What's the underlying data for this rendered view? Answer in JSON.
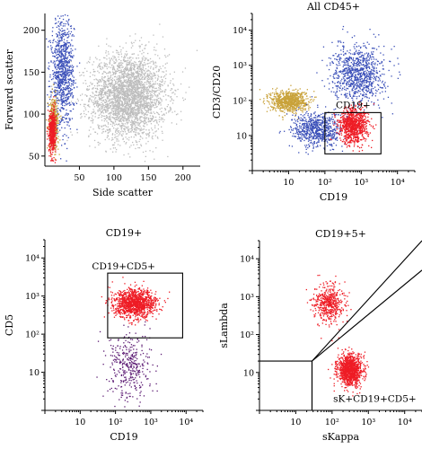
{
  "colors": {
    "grey": "#bdbdbd",
    "blue": "#3a4fb8",
    "red": "#ee1c25",
    "gold": "#c9a23a",
    "purple": "#5b1a73"
  },
  "chart_data": [
    {
      "type": "scatter",
      "title": "",
      "xlabel": "Side scatter",
      "ylabel": "Forward scatter",
      "x_scale": "linear",
      "y_scale": "linear",
      "xlim": [
        0,
        225
      ],
      "ylim": [
        38,
        220
      ],
      "xticks": [
        "50",
        "100",
        "150",
        "200"
      ],
      "yticks": [
        "50",
        "100",
        "150",
        "200"
      ],
      "clusters": [
        {
          "color": "grey",
          "center": [
            120,
            122
          ],
          "spread": [
            55,
            50
          ],
          "count": 3000
        },
        {
          "color": "blue",
          "center": [
            25,
            150
          ],
          "spread": [
            16,
            65
          ],
          "count": 900
        },
        {
          "color": "gold",
          "center": [
            12,
            90
          ],
          "spread": [
            7,
            30
          ],
          "count": 400
        },
        {
          "color": "red",
          "center": [
            10,
            80
          ],
          "spread": [
            5,
            25
          ],
          "count": 500
        }
      ],
      "gates": [],
      "gate_labels": []
    },
    {
      "type": "scatter",
      "title": "All CD45+",
      "xlabel": "CD19",
      "ylabel": "CD3/CD20",
      "x_scale": "log",
      "y_scale": "log",
      "xlim": [
        1,
        30000
      ],
      "ylim": [
        1,
        30000
      ],
      "xticks": [
        "10",
        "10²",
        "10³",
        "10⁴"
      ],
      "yticks": [
        "10",
        "10²",
        "10³",
        "10⁴"
      ],
      "clusters": [
        {
          "color": "gold",
          "center": [
            10,
            100
          ],
          "spread": [
            0.25,
            0.15
          ],
          "count": 800
        },
        {
          "color": "blue",
          "center": [
            60,
            15
          ],
          "spread": [
            0.35,
            0.25
          ],
          "count": 700
        },
        {
          "color": "blue",
          "center": [
            800,
            600
          ],
          "spread": [
            0.35,
            0.4
          ],
          "count": 900
        },
        {
          "color": "red",
          "center": [
            600,
            20
          ],
          "spread": [
            0.2,
            0.25
          ],
          "count": 900
        }
      ],
      "gates": [
        {
          "x": [
            100,
            3500
          ],
          "y": [
            3,
            45
          ]
        }
      ],
      "gate_labels": [
        {
          "text": "CD19+",
          "x": 600,
          "y": 60
        }
      ]
    },
    {
      "type": "scatter",
      "title": "CD19+",
      "xlabel": "CD19",
      "ylabel": "CD5",
      "x_scale": "log",
      "y_scale": "log",
      "xlim": [
        1,
        30000
      ],
      "ylim": [
        1,
        30000
      ],
      "xticks": [
        "10",
        "10²",
        "10³",
        "10⁴"
      ],
      "yticks": [
        "10",
        "10²",
        "10³",
        "10⁴"
      ],
      "clusters": [
        {
          "color": "red",
          "center": [
            350,
            650
          ],
          "spread": [
            0.3,
            0.18
          ],
          "count": 1200
        },
        {
          "color": "purple",
          "center": [
            250,
            15
          ],
          "spread": [
            0.3,
            0.45
          ],
          "count": 350
        }
      ],
      "gates": [
        {
          "x": [
            60,
            8000
          ],
          "y": [
            80,
            4000
          ]
        }
      ],
      "gate_labels": [
        {
          "text": "CD19+CD5+",
          "x": 170,
          "y": 5000
        }
      ]
    },
    {
      "type": "scatter",
      "title": "CD19+5+",
      "xlabel": "sKappa",
      "ylabel": "sLambda",
      "x_scale": "log",
      "y_scale": "log",
      "xlim": [
        1,
        30000
      ],
      "ylim": [
        1,
        30000
      ],
      "xticks": [
        "10",
        "10²",
        "10³",
        "10⁴"
      ],
      "yticks": [
        "10",
        "10²",
        "10³",
        "10⁴"
      ],
      "clusters": [
        {
          "color": "red",
          "center": [
            80,
            700
          ],
          "spread": [
            0.2,
            0.25
          ],
          "count": 500
        },
        {
          "color": "red",
          "center": [
            300,
            12
          ],
          "spread": [
            0.17,
            0.2
          ],
          "count": 1100
        }
      ],
      "gates": [],
      "gate_labels": [
        {
          "text": "sK+CD19+CD5+",
          "x": 1500,
          "y": 1.7
        }
      ]
    }
  ]
}
